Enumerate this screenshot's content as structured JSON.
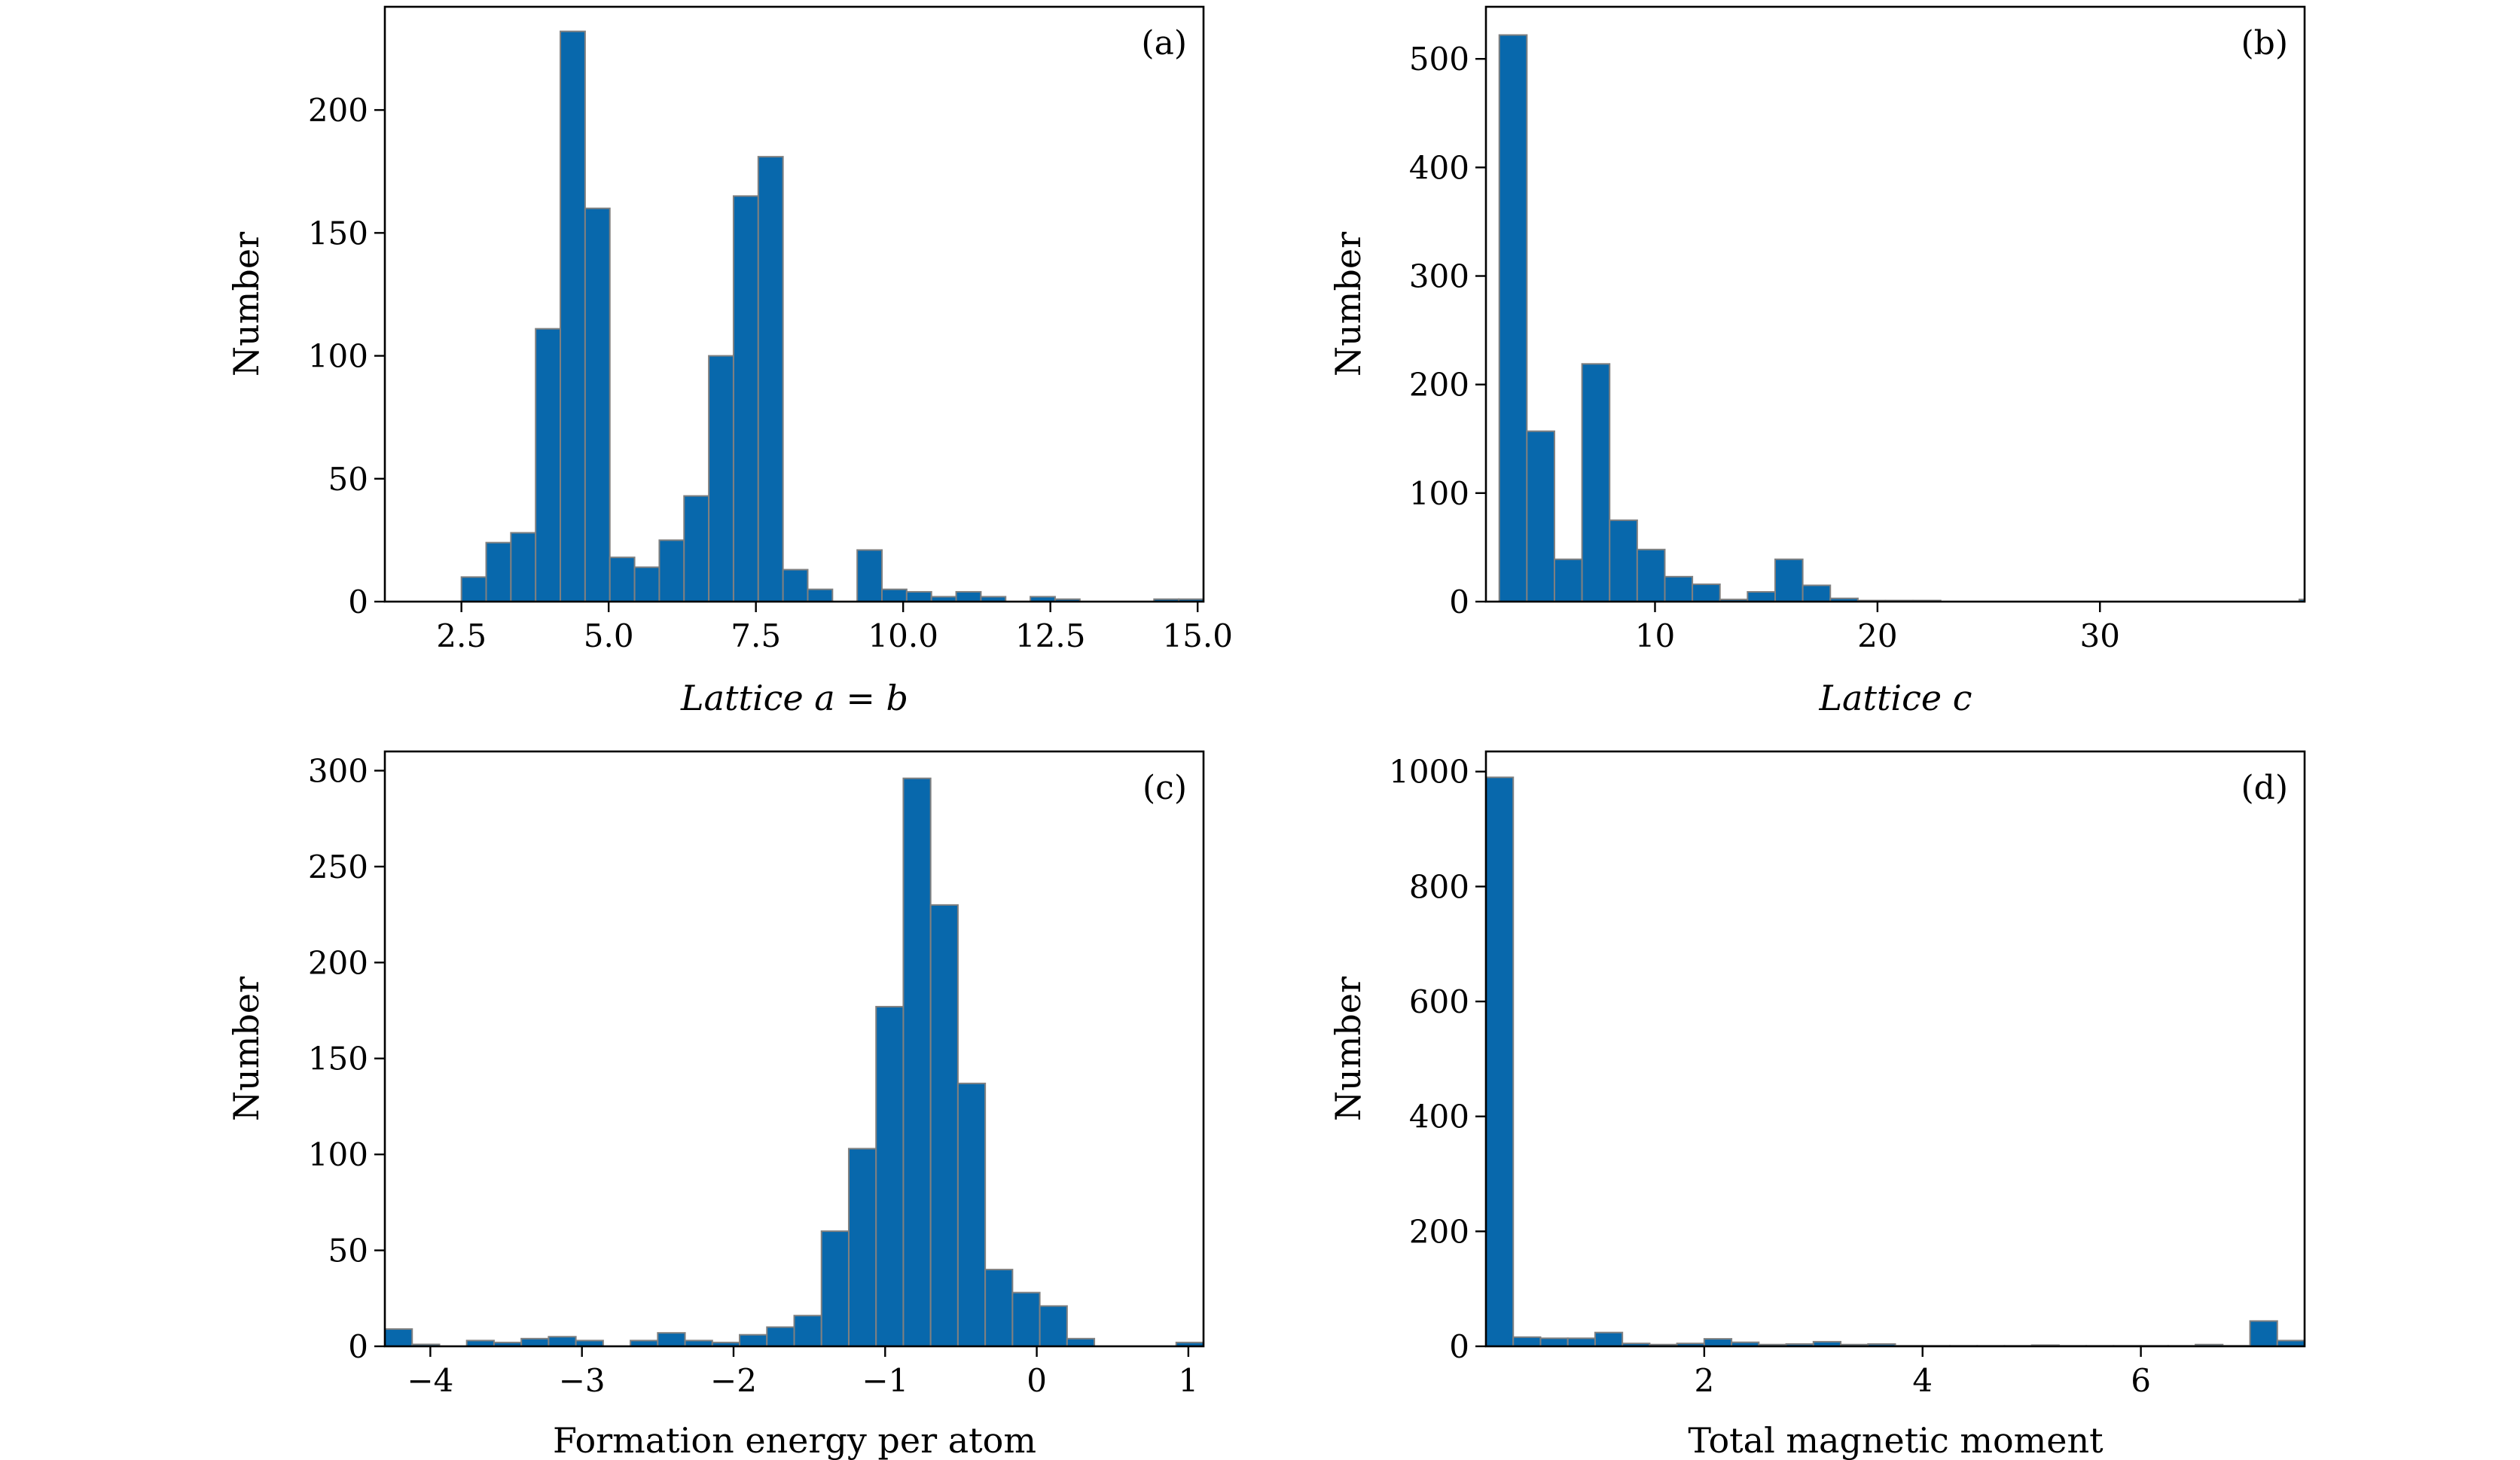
{
  "chart_data": [
    {
      "type": "bar",
      "panel_label": "(a)",
      "title": "",
      "xlabel": "Lattice a = b",
      "ylabel": "Number",
      "xlim": [
        1.2,
        15.1
      ],
      "ylim": [
        0,
        242
      ],
      "xticks": [
        2.5,
        5.0,
        7.5,
        10.0,
        12.5,
        15.0
      ],
      "xtick_labels": [
        "2.5",
        "5.0",
        "7.5",
        "10.0",
        "12.5",
        "15.0"
      ],
      "yticks": [
        0,
        50,
        100,
        150,
        200
      ],
      "ytick_labels": [
        "0",
        "50",
        "100",
        "150",
        "200"
      ],
      "bin_edges": [
        2.5,
        2.92,
        3.34,
        3.76,
        4.18,
        4.6,
        5.02,
        5.44,
        5.86,
        6.28,
        6.7,
        7.12,
        7.54,
        7.96,
        8.38,
        8.8,
        9.22,
        9.64,
        10.06,
        10.48,
        10.9,
        11.32,
        11.74,
        12.16,
        12.58,
        13.0,
        13.42,
        13.84,
        14.26,
        14.68,
        15.1
      ],
      "values": [
        10,
        24,
        28,
        111,
        232,
        160,
        18,
        14,
        25,
        43,
        100,
        165,
        181,
        13,
        5,
        0,
        21,
        5,
        4,
        2,
        4,
        2,
        0,
        2,
        1,
        0,
        0,
        0,
        1,
        1
      ],
      "color": "#0868ac"
    },
    {
      "type": "bar",
      "panel_label": "(b)",
      "title": "",
      "xlabel": "Lattice c",
      "ylabel": "Number",
      "xlim": [
        2.4,
        39.2
      ],
      "ylim": [
        0,
        548
      ],
      "xticks": [
        10,
        20,
        30
      ],
      "xtick_labels": [
        "10",
        "20",
        "30"
      ],
      "yticks": [
        0,
        100,
        200,
        300,
        400,
        500
      ],
      "ytick_labels": [
        "0",
        "100",
        "200",
        "300",
        "400",
        "500"
      ],
      "bin_edges": [
        3.0,
        4.24,
        5.48,
        6.72,
        7.96,
        9.2,
        10.44,
        11.68,
        12.92,
        14.16,
        15.4,
        16.64,
        17.88,
        19.12,
        20.36,
        21.6,
        22.84,
        24.08,
        25.32,
        26.56,
        27.8,
        29.04,
        30.28,
        31.52,
        32.76,
        34.0,
        35.24,
        36.48,
        37.72,
        38.96,
        40.2
      ],
      "values": [
        522,
        157,
        39,
        219,
        75,
        48,
        23,
        16,
        2,
        9,
        39,
        15,
        3,
        1,
        1,
        1,
        0,
        0,
        0,
        0,
        0,
        0,
        0,
        0,
        0,
        0,
        0,
        0,
        0,
        2
      ],
      "color": "#0868ac"
    },
    {
      "type": "bar",
      "panel_label": "(c)",
      "title": "",
      "xlabel": "Formation energy per atom",
      "ylabel": "Number",
      "xlim": [
        -4.3,
        1.1
      ],
      "ylim": [
        0,
        310
      ],
      "xticks": [
        -4,
        -3,
        -2,
        -1,
        0,
        1
      ],
      "xtick_labels": [
        "−4",
        "−3",
        "−2",
        "−1",
        "0",
        "1"
      ],
      "yticks": [
        0,
        50,
        100,
        150,
        200,
        250,
        300
      ],
      "ytick_labels": [
        "0",
        "50",
        "100",
        "150",
        "200",
        "250",
        "300"
      ],
      "bin_edges": [
        -4.3,
        -4.12,
        -3.94,
        -3.76,
        -3.58,
        -3.4,
        -3.22,
        -3.04,
        -2.86,
        -2.68,
        -2.5,
        -2.32,
        -2.14,
        -1.96,
        -1.78,
        -1.6,
        -1.42,
        -1.24,
        -1.06,
        -0.88,
        -0.7,
        -0.52,
        -0.34,
        -0.16,
        0.02,
        0.2,
        0.38,
        0.56,
        0.74,
        0.92,
        1.1
      ],
      "values": [
        9,
        1,
        0,
        3,
        2,
        4,
        5,
        3,
        0,
        3,
        7,
        3,
        2,
        6,
        10,
        16,
        60,
        103,
        177,
        296,
        230,
        137,
        40,
        28,
        21,
        4,
        0,
        0,
        0,
        2
      ],
      "color": "#0868ac"
    },
    {
      "type": "bar",
      "panel_label": "(d)",
      "title": "",
      "xlabel": "Total magnetic moment",
      "ylabel": "Number",
      "xlim": [
        0,
        7.5
      ],
      "ylim": [
        0,
        1035
      ],
      "xticks": [
        2,
        4,
        6
      ],
      "xtick_labels": [
        "2",
        "4",
        "6"
      ],
      "yticks": [
        0,
        200,
        400,
        600,
        800,
        1000
      ],
      "ytick_labels": [
        "0",
        "200",
        "400",
        "600",
        "800",
        "1000"
      ],
      "bin_edges": [
        0.0,
        0.25,
        0.5,
        0.75,
        1.0,
        1.25,
        1.5,
        1.75,
        2.0,
        2.25,
        2.5,
        2.75,
        3.0,
        3.25,
        3.5,
        3.75,
        4.0,
        4.25,
        4.5,
        4.75,
        5.0,
        5.25,
        5.5,
        5.75,
        6.0,
        6.25,
        6.5,
        6.75,
        7.0,
        7.25,
        7.5
      ],
      "values": [
        990,
        16,
        14,
        14,
        24,
        5,
        3,
        5,
        13,
        7,
        3,
        4,
        8,
        3,
        4,
        1,
        1,
        1,
        1,
        1,
        2,
        1,
        1,
        1,
        1,
        1,
        3,
        1,
        44,
        10
      ],
      "color": "#0868ac"
    }
  ]
}
